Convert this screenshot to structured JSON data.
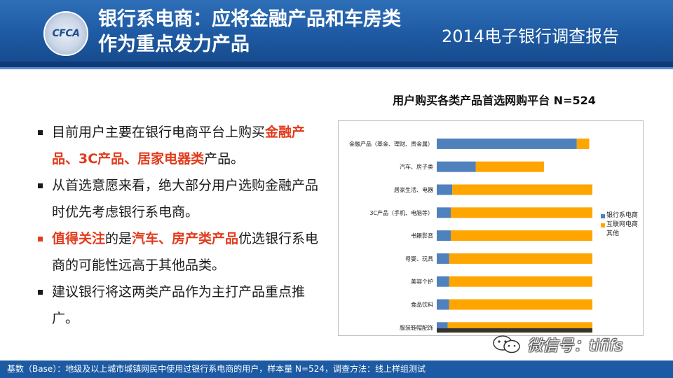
{
  "header": {
    "logo_text": "CFCA",
    "title_line1": "银行系电商：应将金融产品和车房类",
    "title_line2": "作为重点发力产品",
    "report_name": "2014电子银行调查报告"
  },
  "bullets": [
    {
      "parts": [
        {
          "text": "目前用户主要在银行电商平台上购买",
          "hl": false
        },
        {
          "text": "金融产品、3C产品、居家电器类",
          "hl": true
        },
        {
          "text": "产品。",
          "hl": false
        }
      ],
      "marker_red": false
    },
    {
      "parts": [
        {
          "text": "从首选意愿来看，绝大部分用户选购金融产品时优先考虑银行系电商。",
          "hl": false
        }
      ],
      "marker_red": false
    },
    {
      "parts": [
        {
          "text": "值得关注",
          "hl": true
        },
        {
          "text": "的是",
          "hl": false
        },
        {
          "text": "汽车、房产类产品",
          "hl": true
        },
        {
          "text": "优选银行系电商的可能性远高于其他品类。",
          "hl": false
        }
      ],
      "marker_red": true
    },
    {
      "parts": [
        {
          "text": "建议银行将这两类产品作为主打产品重点推广。",
          "hl": false
        }
      ],
      "marker_red": false
    }
  ],
  "chart_data": {
    "type": "bar",
    "orientation": "horizontal",
    "stacked": true,
    "title": "用户购买各类产品首选网购平台  N=524",
    "categories": [
      "金融产品（基金、理财、贵金属）",
      "汽车、房子类",
      "居家生活、电器",
      "3C产品（手机、电脑等）",
      "书籍影音",
      "母婴、玩具",
      "美容个护",
      "食品饮料",
      "服装鞋帽配饰"
    ],
    "series": [
      {
        "name": "银行系电商",
        "color": "#4f81bd",
        "values": [
          90,
          25,
          10,
          9,
          9,
          8,
          8,
          8,
          7
        ]
      },
      {
        "name": "互联网电商",
        "color": "#ffa500",
        "values": [
          8,
          44,
          90,
          91,
          91,
          92,
          92,
          92,
          93
        ]
      },
      {
        "name": "其他",
        "color": "#ffffff",
        "values": [
          2,
          31,
          0,
          0,
          0,
          0,
          0,
          0,
          0
        ]
      }
    ],
    "xlim": [
      0,
      100
    ],
    "legend_position": "right"
  },
  "wechat": {
    "label": "微信号：tififs"
  },
  "footer": {
    "text": "基数（Base）：地级及以上城市城镇网民中使用过银行系电商的用户，样本量 N=524，调查方法：线上样组测试"
  }
}
